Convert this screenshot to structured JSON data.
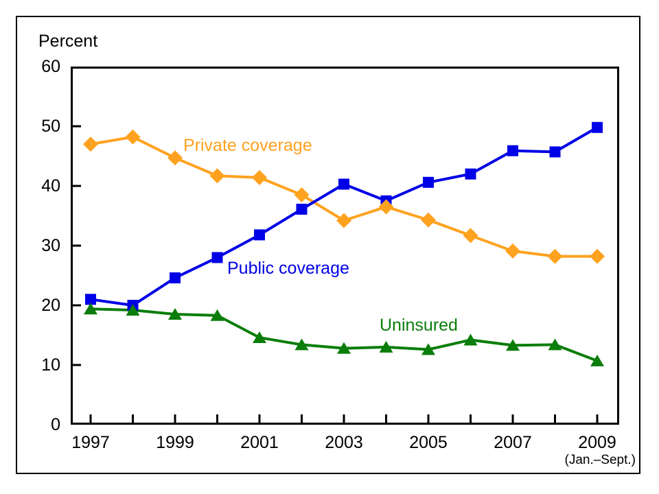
{
  "figure": {
    "kind": "statistical line chart"
  },
  "chart_data": {
    "type": "line",
    "title": "",
    "ylabel": "Percent",
    "xlabel": "",
    "xaxis_note": "(Jan.–Sept.)",
    "x": [
      1997,
      1998,
      1999,
      2000,
      2001,
      2002,
      2003,
      2004,
      2005,
      2006,
      2007,
      2008,
      2009
    ],
    "x_tick_labeled_years": [
      1997,
      1999,
      2001,
      2003,
      2005,
      2007,
      2009
    ],
    "x_tick_labels": [
      "1997",
      "1999",
      "2001",
      "2003",
      "2005",
      "2007",
      "2009"
    ],
    "y_ticks": [
      0,
      10,
      20,
      30,
      40,
      50,
      60
    ],
    "y_tick_labels": [
      "0",
      "10",
      "20",
      "30",
      "40",
      "50",
      "60"
    ],
    "ylim": [
      0,
      60
    ],
    "grid": false,
    "legend_position": "inline-annotations",
    "axis_color": "#000000",
    "series": [
      {
        "name": "Private coverage",
        "marker": "diamond",
        "color": "#FFA21F",
        "values": [
          47.0,
          48.2,
          44.7,
          41.7,
          41.4,
          38.5,
          34.2,
          36.5,
          34.3,
          31.7,
          29.1,
          28.2,
          28.2
        ]
      },
      {
        "name": "Public coverage",
        "marker": "square",
        "color": "#0000E6",
        "values": [
          21.0,
          20.0,
          24.6,
          28.0,
          31.8,
          36.1,
          40.3,
          37.5,
          40.6,
          42.0,
          45.9,
          45.7,
          49.8
        ]
      },
      {
        "name": "Uninsured",
        "marker": "triangle",
        "color": "#0A7D0A",
        "values": [
          19.4,
          19.2,
          18.5,
          18.3,
          14.6,
          13.4,
          12.8,
          13.0,
          12.6,
          14.2,
          13.3,
          13.4,
          10.7
        ]
      }
    ]
  }
}
